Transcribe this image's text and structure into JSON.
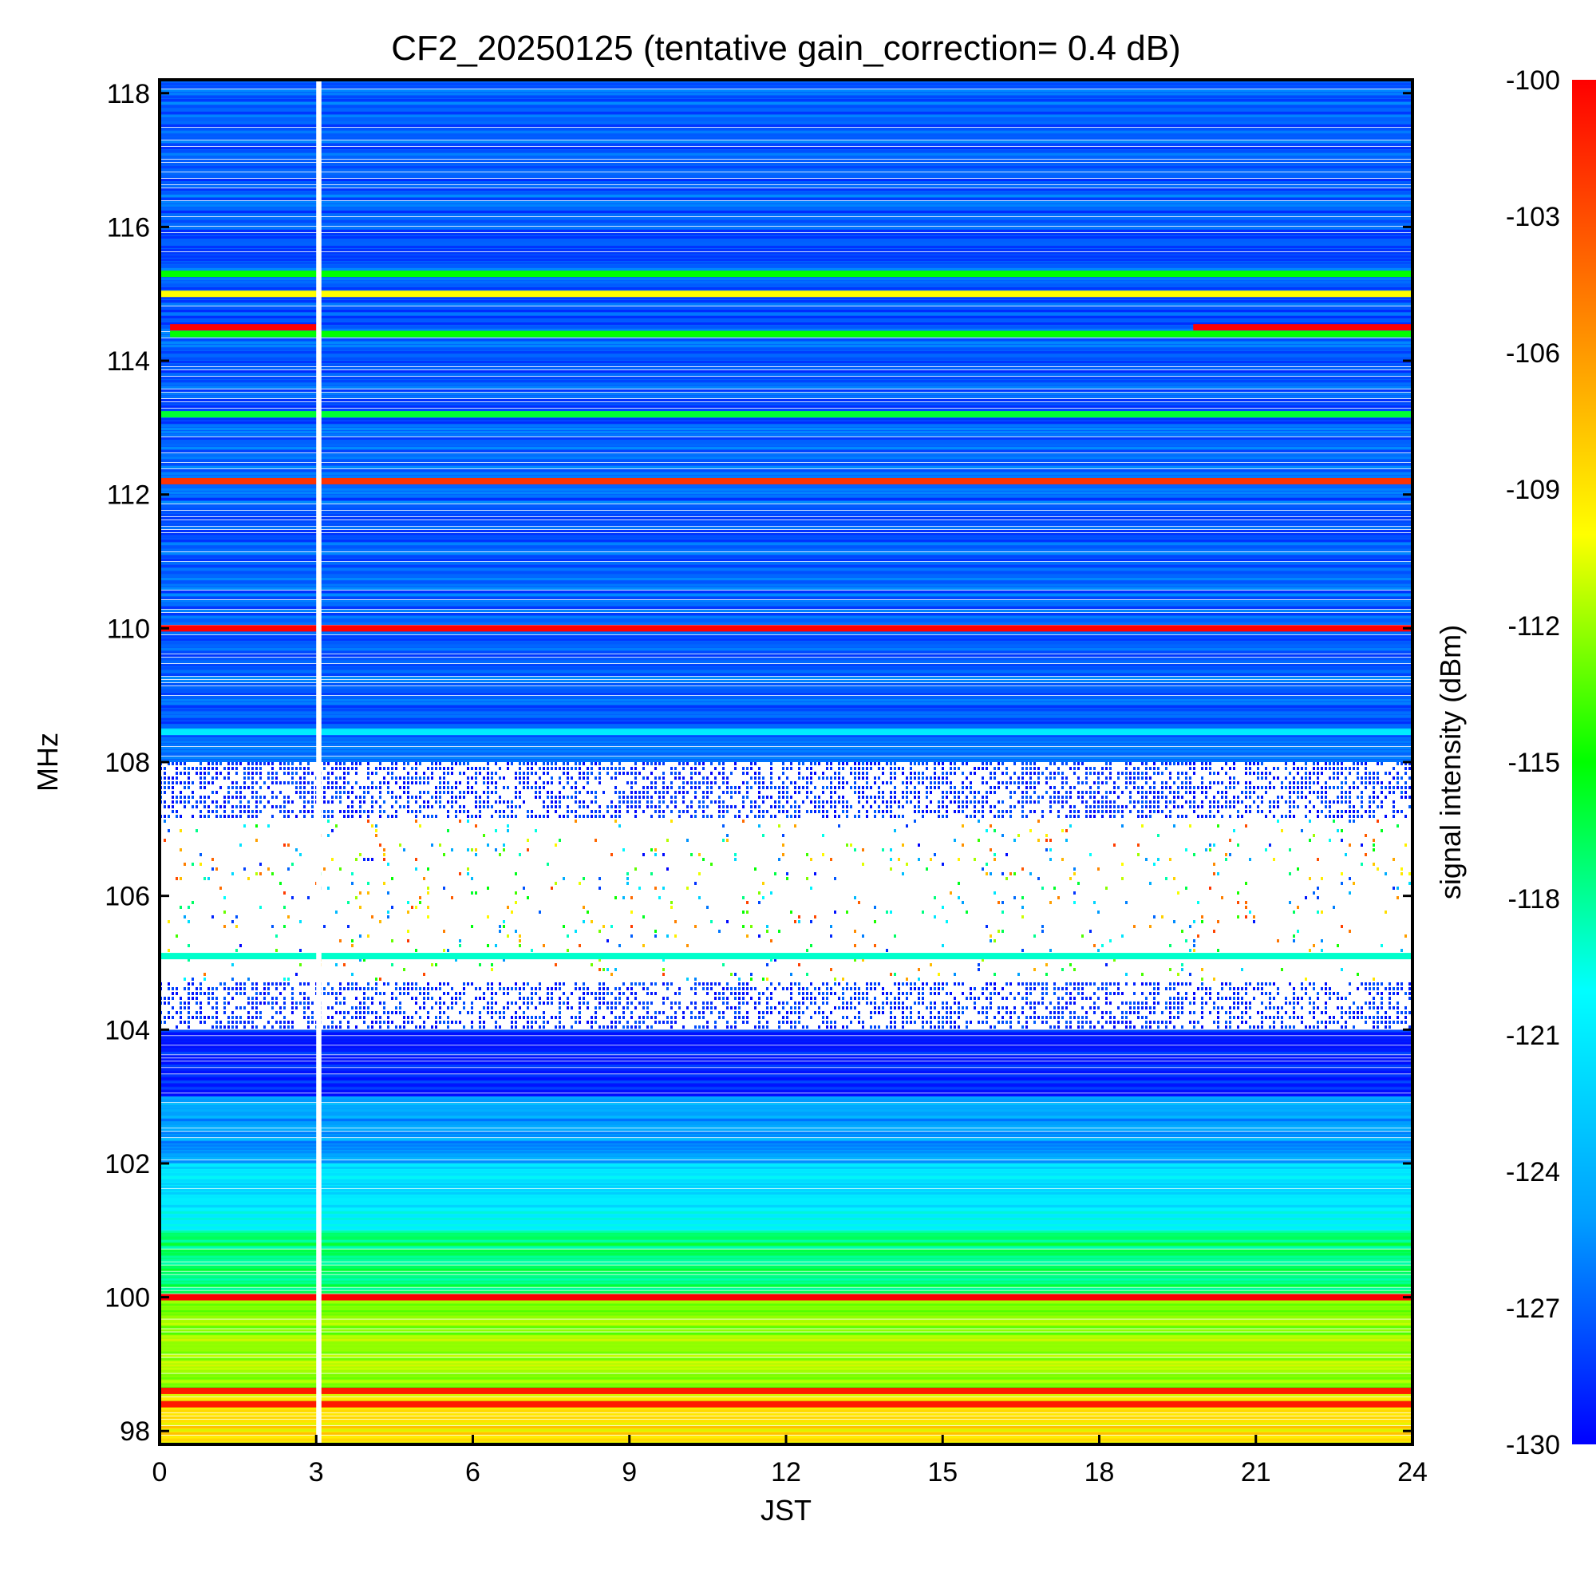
{
  "chart_data": {
    "type": "heatmap",
    "title": "CF2_20250125 (tentative gain_correction=  0.4 dB)",
    "xlabel": "JST",
    "ylabel": "MHz",
    "colorbar_label": "signal intensity (dBm)",
    "xlim": [
      0,
      24
    ],
    "ylim": [
      97.8,
      118.2
    ],
    "x_ticks": [
      0,
      3,
      6,
      9,
      12,
      15,
      18,
      21,
      24
    ],
    "y_ticks": [
      98,
      100,
      102,
      104,
      106,
      108,
      110,
      112,
      114,
      116,
      118
    ],
    "colorbar_range": [
      -130,
      -100
    ],
    "colorbar_ticks": [
      -100,
      -103,
      -106,
      -109,
      -112,
      -115,
      -118,
      -121,
      -124,
      -127,
      -130
    ],
    "colormap": [
      "#0000ff",
      "#00a0ff",
      "#00ffff",
      "#00ff00",
      "#ffff00",
      "#ff8000",
      "#ff0000"
    ],
    "gaps": [
      {
        "x_start": 3.0,
        "x_end": 3.1,
        "description": "data gap"
      }
    ],
    "strong_bands": [
      {
        "freq": 114.5,
        "x_start": 0.2,
        "x_end": 3.0,
        "level": -100
      },
      {
        "freq": 114.5,
        "x_start": 19.8,
        "x_end": 24,
        "level": -100
      },
      {
        "freq": 114.4,
        "x_start": 0.2,
        "x_end": 24,
        "level": -115
      },
      {
        "freq": 115.3,
        "x_start": 0,
        "x_end": 24,
        "level": -115
      },
      {
        "freq": 115.0,
        "x_start": 0,
        "x_end": 24,
        "level": -110
      },
      {
        "freq": 113.2,
        "x_start": 0,
        "x_end": 24,
        "level": -116
      },
      {
        "freq": 112.2,
        "x_start": 0,
        "x_end": 24,
        "level": -102
      },
      {
        "freq": 110.0,
        "x_start": 0,
        "x_end": 24,
        "level": -100
      },
      {
        "freq": 108.45,
        "x_start": 0,
        "x_end": 24,
        "level": -121
      },
      {
        "freq": 105.1,
        "x_start": 0,
        "x_end": 24,
        "level": -119
      },
      {
        "freq": 100.0,
        "x_start": 0,
        "x_end": 24,
        "level": -100
      },
      {
        "freq": 98.6,
        "x_start": 0,
        "x_end": 24,
        "level": -101
      },
      {
        "freq": 98.4,
        "x_start": 0,
        "x_end": 24,
        "level": -101
      }
    ],
    "background_gradient": [
      {
        "freq_from": 97.8,
        "freq_to": 98.6,
        "level": -109
      },
      {
        "freq_from": 98.6,
        "freq_to": 100.0,
        "level": -112
      },
      {
        "freq_from": 100.0,
        "freq_to": 101.0,
        "level": -117
      },
      {
        "freq_from": 101.0,
        "freq_to": 102.0,
        "level": -121
      },
      {
        "freq_from": 102.0,
        "freq_to": 103.0,
        "level": -125
      },
      {
        "freq_from": 103.0,
        "freq_to": 104.0,
        "level": -129
      },
      {
        "freq_from": 108.0,
        "freq_to": 118.2,
        "level": -127
      }
    ],
    "sparse_region": {
      "freq_from": 104.0,
      "freq_to": 108.0,
      "description": "mostly blank with sparse signals"
    },
    "grid": false,
    "colorbar_position": "right"
  }
}
